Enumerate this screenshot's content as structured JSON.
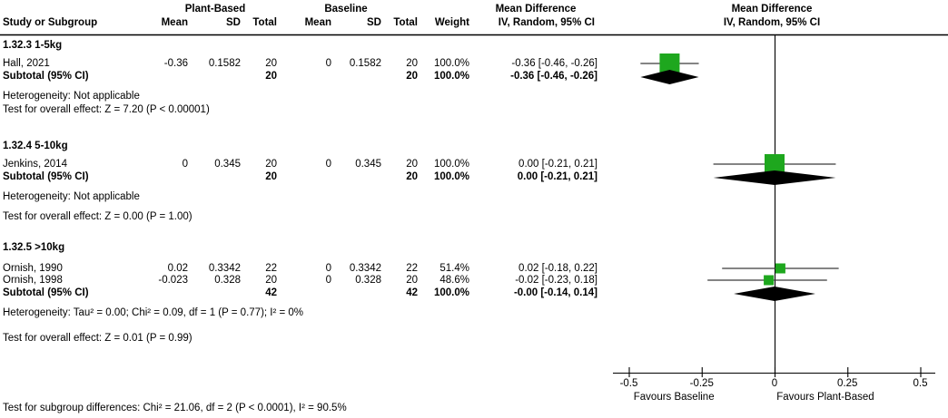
{
  "colors": {
    "marker": "#1EA71E",
    "diamond": "#000000",
    "ci_line": "#3A3A3A",
    "axis": "#000000"
  },
  "header": {
    "group_plant": "Plant-Based",
    "group_baseline": "Baseline",
    "study_col": "Study or Subgroup",
    "mean": "Mean",
    "sd": "SD",
    "total": "Total",
    "weight": "Weight",
    "md_line1": "Mean Difference",
    "md_line2": "IV, Random, 95% CI",
    "plot_line1": "Mean Difference",
    "plot_line2": "IV, Random, 95% CI"
  },
  "footer": {
    "subgroup_test": "Test for subgroup differences: Chi² = 21.06, df = 2 (P < 0.0001), I² = 90.5%"
  },
  "chart_data": {
    "type": "forest",
    "effect_measure": "Mean Difference",
    "method": "IV, Random, 95% CI",
    "axis": {
      "xlim": [
        -0.5,
        0.5
      ],
      "ticks": [
        -0.5,
        -0.25,
        0,
        0.25,
        0.5
      ],
      "tick_labels": [
        "-0.5",
        "-0.25",
        "0",
        "0.25",
        "0.5"
      ],
      "left_label": "Favours Baseline",
      "right_label": "Favours Plant-Based"
    },
    "subgroups": [
      {
        "title": "1.32.3 1-5kg",
        "studies": [
          {
            "name": "Hall, 2021",
            "mean1": "-0.36",
            "sd1": "0.1582",
            "total1": "20",
            "mean2": "0",
            "sd2": "0.1582",
            "total2": "20",
            "weight": "100.0%",
            "weight_pct": 100.0,
            "ci_text": "-0.36 [-0.46, -0.26]",
            "md": -0.36,
            "lo": -0.46,
            "hi": -0.26
          }
        ],
        "subtotal": {
          "label": "Subtotal (95% CI)",
          "total1": "20",
          "total2": "20",
          "weight": "100.0%",
          "ci_text": "-0.36 [-0.46, -0.26]",
          "md": -0.36,
          "lo": -0.46,
          "hi": -0.26
        },
        "heterogeneity": "Heterogeneity: Not applicable",
        "overall": "Test for overall effect: Z = 7.20 (P < 0.00001)"
      },
      {
        "title": "1.32.4 5-10kg",
        "studies": [
          {
            "name": "Jenkins, 2014",
            "mean1": "0",
            "sd1": "0.345",
            "total1": "20",
            "mean2": "0",
            "sd2": "0.345",
            "total2": "20",
            "weight": "100.0%",
            "weight_pct": 100.0,
            "ci_text": "0.00 [-0.21, 0.21]",
            "md": 0.0,
            "lo": -0.21,
            "hi": 0.21
          }
        ],
        "subtotal": {
          "label": "Subtotal (95% CI)",
          "total1": "20",
          "total2": "20",
          "weight": "100.0%",
          "ci_text": "0.00 [-0.21, 0.21]",
          "md": 0.0,
          "lo": -0.21,
          "hi": 0.21
        },
        "heterogeneity": "Heterogeneity: Not applicable",
        "overall": "Test for overall effect: Z = 0.00 (P = 1.00)"
      },
      {
        "title": "1.32.5 >10kg",
        "studies": [
          {
            "name": "Ornish, 1990",
            "mean1": "0.02",
            "sd1": "0.3342",
            "total1": "22",
            "mean2": "0",
            "sd2": "0.3342",
            "total2": "22",
            "weight": "51.4%",
            "weight_pct": 51.4,
            "ci_text": "0.02 [-0.18, 0.22]",
            "md": 0.02,
            "lo": -0.18,
            "hi": 0.22
          },
          {
            "name": "Ornish, 1998",
            "mean1": "-0.023",
            "sd1": "0.328",
            "total1": "20",
            "mean2": "0",
            "sd2": "0.328",
            "total2": "20",
            "weight": "48.6%",
            "weight_pct": 48.6,
            "ci_text": "-0.02 [-0.23, 0.18]",
            "md": -0.02,
            "lo": -0.23,
            "hi": 0.18
          }
        ],
        "subtotal": {
          "label": "Subtotal (95% CI)",
          "total1": "42",
          "total2": "42",
          "weight": "100.0%",
          "ci_text": "-0.00 [-0.14, 0.14]",
          "md": -0.0,
          "lo": -0.14,
          "hi": 0.14
        },
        "heterogeneity": "Heterogeneity: Tau² = 0.00; Chi² = 0.09, df = 1 (P = 0.77); I² = 0%",
        "overall": "Test for overall effect: Z = 0.01 (P = 0.99)"
      }
    ]
  }
}
